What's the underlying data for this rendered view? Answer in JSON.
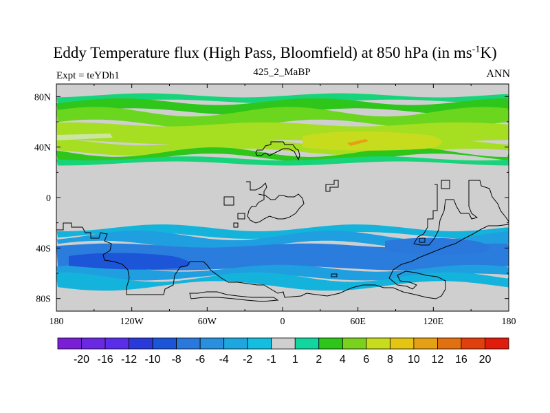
{
  "title": {
    "main": "Eddy Temperature flux (High Pass, Bloomfield) at 850 hPa (in ms",
    "sup": "-1",
    "end": "K)"
  },
  "experiment": "Expt = teYDh1",
  "center_label": "425_2_MaBP",
  "season": "ANN",
  "map": {
    "lat_ticks": [
      "80N",
      "40N",
      "0",
      "40S",
      "80S"
    ],
    "lon_ticks": [
      "180",
      "120W",
      "60W",
      "0",
      "60E",
      "120E",
      "180"
    ],
    "lat_range": [
      -90,
      90
    ],
    "lon_range": [
      -180,
      180
    ],
    "bands": [
      {
        "lat_from": 81,
        "lat_to": 76,
        "color": "#17d47a"
      },
      {
        "lat_from": 76,
        "lat_to": 68,
        "color": "#2ec61a"
      },
      {
        "lat_from": 68,
        "lat_to": 58,
        "color": "#6ad61e"
      },
      {
        "lat_from": 58,
        "lat_to": 44,
        "color": "#a6de22"
      },
      {
        "lat_from": 44,
        "lat_to": 36,
        "color": "#a6de22"
      },
      {
        "lat_from": 36,
        "lat_to": 31,
        "color": "#2ec61a"
      },
      {
        "lat_from": 31,
        "lat_to": 27,
        "color": "#17d47a"
      },
      {
        "lat_from": -24,
        "lat_to": -30,
        "color": "#14b3dc"
      },
      {
        "lat_from": -30,
        "lat_to": -38,
        "color": "#1f9ee0"
      },
      {
        "lat_from": -38,
        "lat_to": -56,
        "color": "#2a7ddc"
      },
      {
        "lat_from": -56,
        "lat_to": -63,
        "color": "#1f9ee0"
      },
      {
        "lat_from": -63,
        "lat_to": -70,
        "color": "#14b3dc"
      }
    ],
    "background_color": "#cfcfcf"
  },
  "colorbar": {
    "labels": [
      "-20",
      "-16",
      "-12",
      "-10",
      "-8",
      "-6",
      "-4",
      "-2",
      "-1",
      "1",
      "2",
      "4",
      "6",
      "8",
      "10",
      "12",
      "16",
      "20"
    ],
    "colors": [
      "#7a1fd6",
      "#6a28e0",
      "#5a2ee8",
      "#2a3ad8",
      "#1c55d8",
      "#2a78dc",
      "#2a90de",
      "#1ea6de",
      "#14bede",
      "#cfcfcf",
      "#12d6a0",
      "#2ec61a",
      "#7ad21e",
      "#c8dc1e",
      "#e6c414",
      "#e6a014",
      "#e27010",
      "#e0400c",
      "#e01c0c"
    ]
  }
}
